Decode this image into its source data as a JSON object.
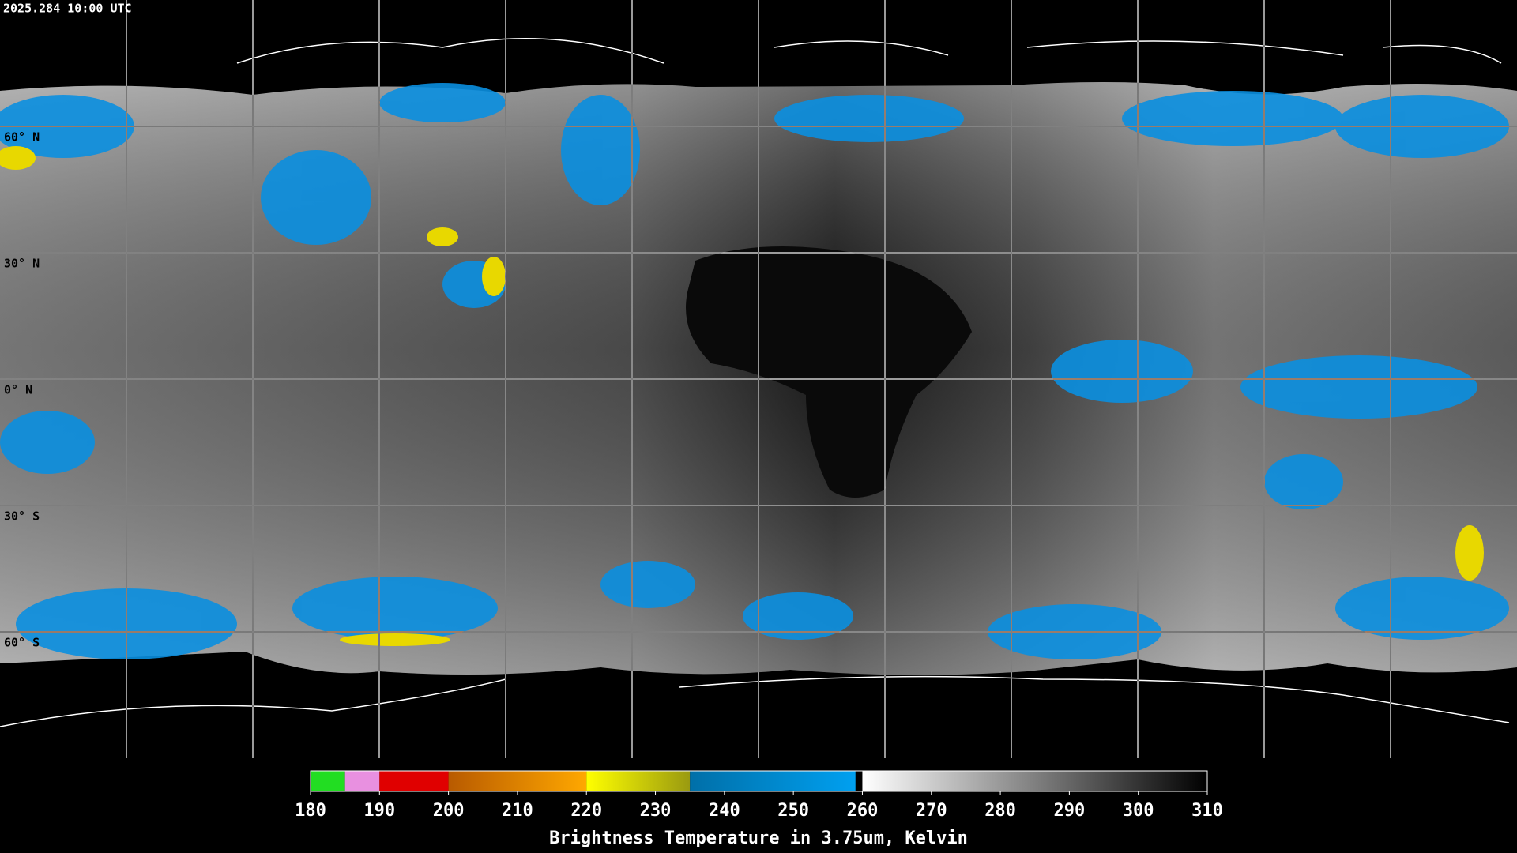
{
  "header": {
    "timestamp": "2025.284 10:00 UTC"
  },
  "map": {
    "xlim": [
      -180,
      180
    ],
    "ylim": [
      -90,
      90
    ],
    "lon_lines": [
      -150,
      -120,
      -90,
      -60,
      -30,
      0,
      30,
      60,
      90,
      120,
      150
    ],
    "lat_lines": [
      {
        "value": 60,
        "label": "60° N"
      },
      {
        "value": 30,
        "label": "30° N"
      },
      {
        "value": 0,
        "label": "0° N"
      },
      {
        "value": -30,
        "label": "30° S"
      },
      {
        "value": -60,
        "label": "60° S"
      }
    ]
  },
  "colorbar": {
    "title": "Brightness Temperature in 3.75um, Kelvin",
    "xlim": [
      180,
      310
    ],
    "xticks": [
      180,
      190,
      200,
      210,
      220,
      230,
      240,
      250,
      260,
      270,
      280,
      290,
      300,
      310
    ],
    "segments": [
      {
        "from": 180,
        "to": 185,
        "colors": [
          "#22dd22",
          "#22dd22"
        ]
      },
      {
        "from": 185,
        "to": 190,
        "colors": [
          "#e890e0",
          "#e890e0"
        ]
      },
      {
        "from": 190,
        "to": 200,
        "colors": [
          "#e00000",
          "#e00000"
        ]
      },
      {
        "from": 200,
        "to": 220,
        "colors": [
          "#b85a00",
          "#ffa800"
        ]
      },
      {
        "from": 220,
        "to": 235,
        "colors": [
          "#ffff00",
          "#9a9a10"
        ]
      },
      {
        "from": 235,
        "to": 259,
        "colors": [
          "#006fa8",
          "#00a0f0"
        ]
      },
      {
        "from": 260,
        "to": 310,
        "colors": [
          "#ffffff",
          "#000000"
        ]
      }
    ]
  }
}
